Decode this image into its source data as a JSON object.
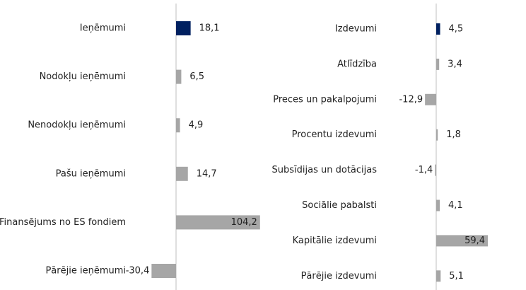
{
  "chart_data": [
    {
      "type": "barh",
      "categories": [
        "Ieņēmumi",
        "Nodokļu ieņēmumi",
        "Nenodokļu ieņēmumi",
        "Pašu ieņēmumi",
        "Finansējums no ES fondiem",
        "Pārējie ieņēmumi"
      ],
      "values": [
        18.1,
        6.5,
        4.9,
        14.7,
        104.2,
        -30.4
      ],
      "value_labels": [
        "18,1",
        "6,5",
        "4,9",
        "14,7",
        "104,2",
        "-30,4"
      ],
      "colors": [
        "#002060",
        "#a6a6a6",
        "#a6a6a6",
        "#a6a6a6",
        "#a6a6a6",
        "#a6a6a6"
      ],
      "xlim": [
        -40,
        120
      ]
    },
    {
      "type": "barh",
      "categories": [
        "Izdevumi",
        "Atlīdzība",
        "Preces un pakalpojumi",
        "Procentu izdevumi",
        "Subsīdijas un dotācijas",
        "Sociālie pabalsti",
        "Kapitālie izdevumi",
        "Pārējie izdevumi"
      ],
      "values": [
        4.5,
        3.4,
        -12.9,
        1.8,
        -1.4,
        4.1,
        59.4,
        5.1
      ],
      "value_labels": [
        "4,5",
        "3,4",
        "-12,9",
        "1,8",
        "-1,4",
        "4,1",
        "59,4",
        "5,1"
      ],
      "colors": [
        "#002060",
        "#a6a6a6",
        "#a6a6a6",
        "#a6a6a6",
        "#a6a6a6",
        "#a6a6a6",
        "#a6a6a6",
        "#a6a6a6"
      ],
      "xlim": [
        -20,
        80
      ]
    }
  ]
}
